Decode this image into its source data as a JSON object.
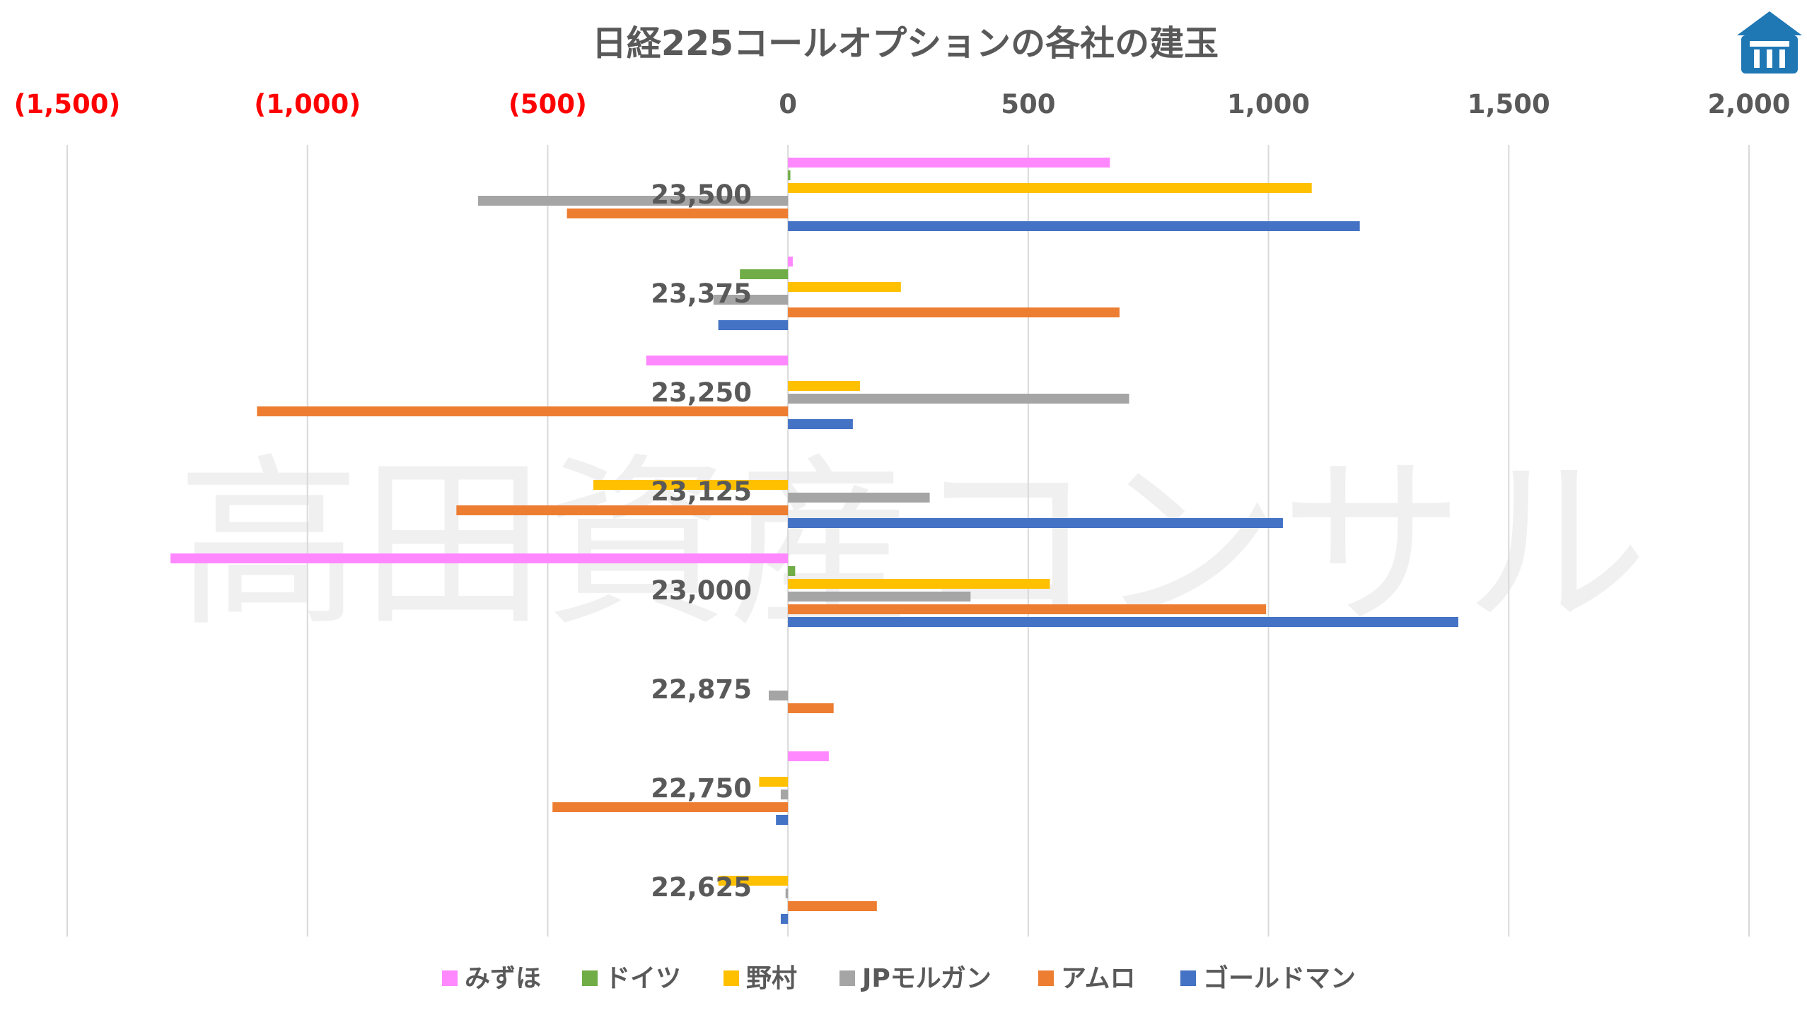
{
  "chart_data": {
    "type": "bar",
    "orientation": "horizontal",
    "title": "日経225コールオプションの各社の建玉",
    "watermark": "高田資産コンサル",
    "xlim": [
      -1500,
      2000
    ],
    "x_ticks": [
      {
        "value": -1500,
        "label": "(1,500)",
        "color": "#ff0000"
      },
      {
        "value": -1000,
        "label": "(1,000)",
        "color": "#ff0000"
      },
      {
        "value": -500,
        "label": "(500)",
        "color": "#ff0000"
      },
      {
        "value": 0,
        "label": "0",
        "color": "#595959"
      },
      {
        "value": 500,
        "label": "500",
        "color": "#595959"
      },
      {
        "value": 1000,
        "label": "1,000",
        "color": "#595959"
      },
      {
        "value": 1500,
        "label": "1,500",
        "color": "#595959"
      },
      {
        "value": 2000,
        "label": "2,000",
        "color": "#595959"
      }
    ],
    "grid": "vertical",
    "legend_position": "bottom",
    "categories": [
      "23,500",
      "23,375",
      "23,250",
      "23,125",
      "23,000",
      "22,875",
      "22,750",
      "22,625"
    ],
    "series": [
      {
        "name": "みずほ",
        "color": "#ff88ff",
        "values": [
          670,
          10,
          -295,
          0,
          -1285,
          0,
          85,
          0
        ]
      },
      {
        "name": "ドイツ",
        "color": "#70ad47",
        "values": [
          5,
          -100,
          0,
          0,
          15,
          0,
          0,
          0
        ]
      },
      {
        "name": "野村",
        "color": "#ffc000",
        "values": [
          1090,
          235,
          150,
          -405,
          545,
          0,
          -60,
          -145
        ]
      },
      {
        "name": "JPモルガン",
        "color": "#a5a5a5",
        "values": [
          -645,
          -155,
          710,
          295,
          380,
          -40,
          -15,
          -5
        ]
      },
      {
        "name": "アムロ",
        "color": "#ed7d31",
        "values": [
          -460,
          690,
          -1105,
          -690,
          995,
          95,
          -490,
          185
        ]
      },
      {
        "name": "ゴールドマン",
        "color": "#4472c4",
        "values": [
          1190,
          -145,
          135,
          1030,
          1395,
          0,
          -25,
          -15
        ]
      }
    ]
  },
  "logo": {
    "name": "logo-icon",
    "color": "#1f77b4"
  }
}
